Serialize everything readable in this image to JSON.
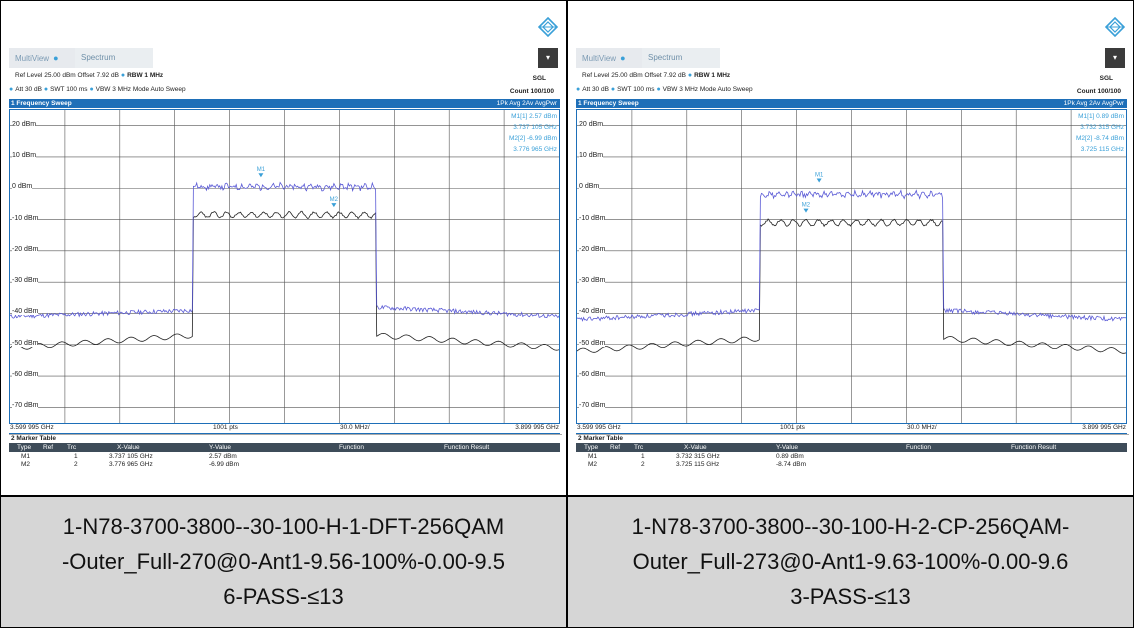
{
  "panels": [
    {
      "tabs": [
        "MultiView",
        "Spectrum"
      ],
      "header": {
        "row1_left": "Ref Level 25.00 dBm   Offset 7.92 dB",
        "rbw": "RBW 1 MHz",
        "mode_sgl": "SGL",
        "row2_left": "Att        30 dB",
        "swt": "SWT   100 ms",
        "vbw": "VBW 3 MHz   Mode Auto Sweep",
        "count": "Count 100/100"
      },
      "sweep_title": "1 Frequency Sweep",
      "trace_legend": "1Pk Avg  2Av AvgPwr",
      "y_labels": [
        "20 dBm",
        "10 dBm",
        "0 dBm",
        "-10 dBm",
        "-20 dBm",
        "-30 dBm",
        "-40 dBm",
        "-50 dBm",
        "-60 dBm",
        "-70 dBm"
      ],
      "marker_info": [
        "M1[1]     2.57 dBm",
        "3.737 105 GHz",
        "M2[2]    -6.99 dBm",
        "3.776 965 GHz"
      ],
      "x_start": "3.599 995 GHz",
      "x_points": "1001 pts",
      "x_span": "30.0 MHz/",
      "x_stop": "3.899 995 GHz",
      "marker_table_title": "2 Marker Table",
      "marker_table_headers": [
        "Type",
        "Ref",
        "Trc",
        "X-Value",
        "Y-Value",
        "Function",
        "Function Result"
      ],
      "marker_rows": [
        {
          "type": "M1",
          "trc": "1",
          "x": "3.737 105 GHz",
          "y": "2.57 dBm"
        },
        {
          "type": "M2",
          "trc": "2",
          "x": "3.776 965 GHz",
          "y": "-6.99 dBm"
        }
      ],
      "m1_label": "M1",
      "m2_label": "M2",
      "caption": [
        "1-N78-3700-3800--30-100-H-1-DFT-256QAM",
        "-Outer_Full-270@0-Ant1-9.56-100%-0.00-9.5",
        "6-PASS-≤13"
      ]
    },
    {
      "tabs": [
        "MultiView",
        "Spectrum"
      ],
      "header": {
        "row1_left": "Ref Level 25.00 dBm   Offset 7.92 dB",
        "rbw": "RBW 1 MHz",
        "mode_sgl": "SGL",
        "row2_left": "Att        30 dB",
        "swt": "SWT   100 ms",
        "vbw": "VBW 3 MHz   Mode Auto Sweep",
        "count": "Count 100/100"
      },
      "sweep_title": "1 Frequency Sweep",
      "trace_legend": "1Pk Avg  2Av AvgPwr",
      "y_labels": [
        "20 dBm",
        "10 dBm",
        "0 dBm",
        "-10 dBm",
        "-20 dBm",
        "-30 dBm",
        "-40 dBm",
        "-50 dBm",
        "-60 dBm",
        "-70 dBm"
      ],
      "marker_info": [
        "M1[1]     0.89 dBm",
        "3.732 315 GHz",
        "M2[2]    -8.74 dBm",
        "3.725 115 GHz"
      ],
      "x_start": "3.599 995 GHz",
      "x_points": "1001 pts",
      "x_span": "30.0 MHz/",
      "x_stop": "3.899 995 GHz",
      "marker_table_title": "2 Marker Table",
      "marker_table_headers": [
        "Type",
        "Ref",
        "Trc",
        "X-Value",
        "Y-Value",
        "Function",
        "Function Result"
      ],
      "marker_rows": [
        {
          "type": "M1",
          "trc": "1",
          "x": "3.732 315 GHz",
          "y": "0.89 dBm"
        },
        {
          "type": "M2",
          "trc": "2",
          "x": "3.725 115 GHz",
          "y": "-8.74 dBm"
        }
      ],
      "m1_label": "M1",
      "m2_label": "M2",
      "caption": [
        "1-N78-3700-3800--30-100-H-2-CP-256QAM-",
        "Outer_Full-273@0-Ant1-9.63-100%-0.00-9.6",
        "3-PASS-≤13"
      ]
    }
  ],
  "traces": [
    {
      "blue_shoulder_db": -41,
      "blue_edge_left_db": -39,
      "blue_edge_right_db": -38,
      "blue_plateau_db": 0.5,
      "black_shoulder_db": -51,
      "black_edge_db": -47,
      "black_plateau_db": -8.5,
      "channel_start_ghz": 3.7,
      "channel_stop_ghz": 3.8,
      "m1": {
        "ghz": 3.737105,
        "db": 2.57
      },
      "m2": {
        "ghz": 3.776965,
        "db": -6.99
      }
    },
    {
      "blue_shoulder_db": -42,
      "blue_edge_left_db": -39,
      "blue_edge_right_db": -39,
      "blue_plateau_db": -2,
      "black_shoulder_db": -52,
      "black_edge_db": -48,
      "black_plateau_db": -11,
      "channel_start_ghz": 3.7,
      "channel_stop_ghz": 3.8,
      "m1": {
        "ghz": 3.732315,
        "db": 0.89
      },
      "m2": {
        "ghz": 3.725115,
        "db": -8.74
      }
    }
  ],
  "colors": {
    "trace1": "#5b5bd6",
    "trace2": "#222222",
    "accent": "#1e6fb8",
    "marker": "#3aa0d8"
  }
}
